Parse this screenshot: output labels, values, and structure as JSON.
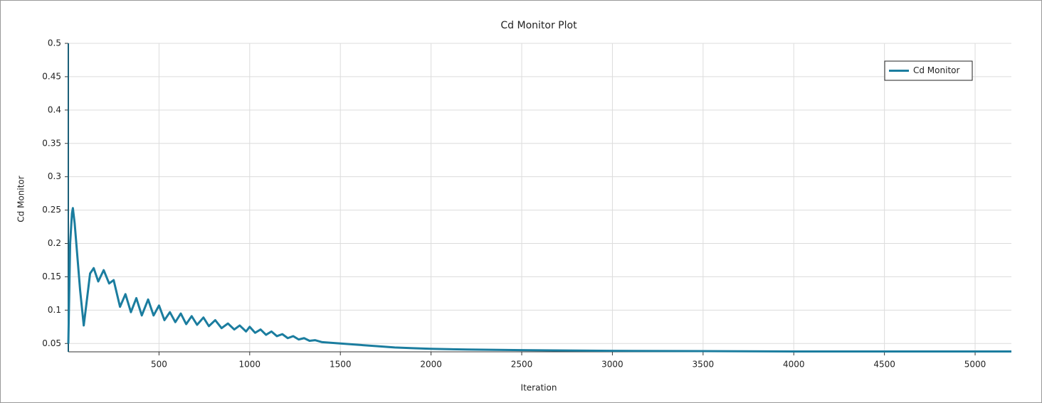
{
  "chart_data": {
    "type": "line",
    "title": "Cd Monitor Plot",
    "x_label": "Iteration",
    "y_label": "Cd Monitor",
    "x": [
      0,
      10,
      20,
      25,
      35,
      50,
      65,
      85,
      100,
      120,
      140,
      165,
      195,
      225,
      250,
      285,
      315,
      345,
      375,
      405,
      440,
      470,
      500,
      530,
      560,
      590,
      620,
      650,
      680,
      710,
      745,
      775,
      810,
      845,
      880,
      915,
      945,
      980,
      1000,
      1030,
      1060,
      1090,
      1120,
      1150,
      1180,
      1210,
      1240,
      1270,
      1300,
      1330,
      1360,
      1400,
      1500,
      1600,
      1700,
      1800,
      1900,
      2000,
      2200,
      2500,
      3000,
      3500,
      4000,
      5200
    ],
    "series": [
      {
        "name": "Cd Monitor",
        "color": "#1b7d9f",
        "values": [
          0.05,
          0.2,
          0.245,
          0.253,
          0.23,
          0.18,
          0.13,
          0.077,
          0.11,
          0.155,
          0.163,
          0.143,
          0.16,
          0.14,
          0.145,
          0.105,
          0.124,
          0.097,
          0.118,
          0.092,
          0.116,
          0.092,
          0.107,
          0.085,
          0.097,
          0.082,
          0.095,
          0.079,
          0.091,
          0.078,
          0.089,
          0.076,
          0.085,
          0.073,
          0.08,
          0.071,
          0.077,
          0.068,
          0.075,
          0.066,
          0.071,
          0.063,
          0.068,
          0.061,
          0.064,
          0.058,
          0.061,
          0.056,
          0.058,
          0.054,
          0.055,
          0.052,
          0.05,
          0.048,
          0.046,
          0.044,
          0.043,
          0.042,
          0.041,
          0.04,
          0.039,
          0.0385,
          0.038,
          0.038
        ]
      }
    ],
    "xlim": [
      0,
      5200
    ],
    "ylim": [
      0.0375,
      0.5
    ],
    "xticks": [
      500,
      1000,
      1500,
      2000,
      2500,
      3000,
      3500,
      4000,
      4500,
      5000
    ],
    "yticks": [
      0.05,
      0.1,
      0.15,
      0.2,
      0.25,
      0.3,
      0.35,
      0.4,
      0.45,
      0.5
    ],
    "grid": true,
    "legend": "upper right"
  }
}
